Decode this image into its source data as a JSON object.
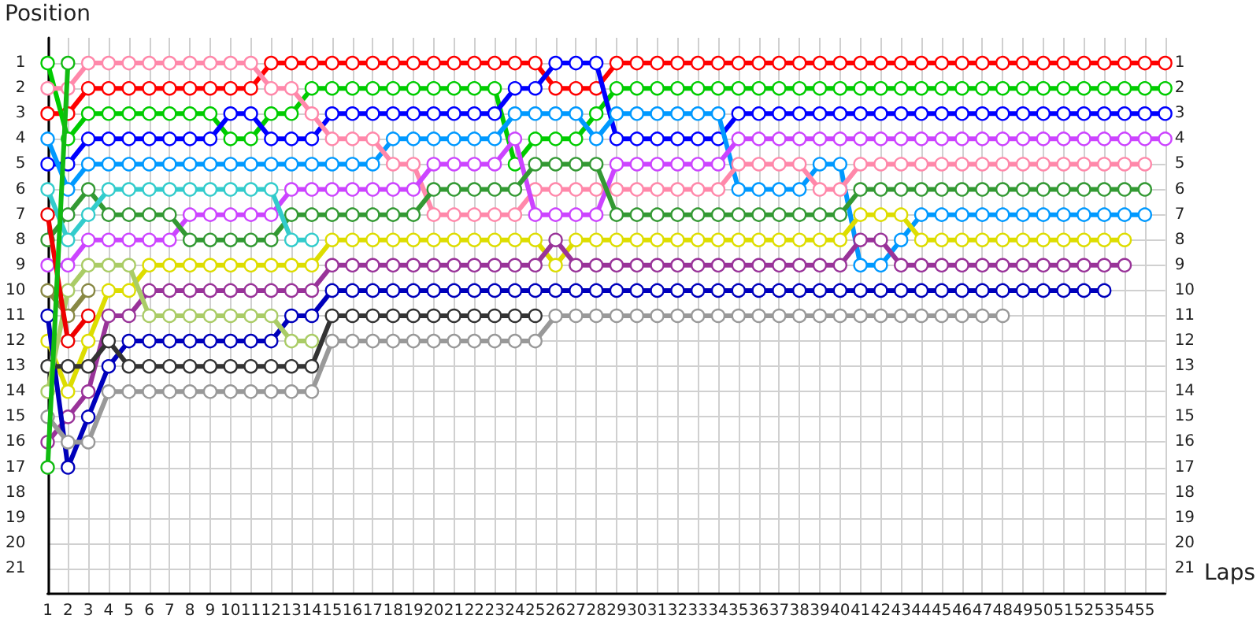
{
  "chart_data": {
    "type": "line",
    "xlabel": "Laps",
    "ylabel": "Position",
    "categories": [
      "1",
      "2",
      "3",
      "4",
      "5",
      "6",
      "7",
      "8",
      "9",
      "10",
      "11",
      "12",
      "13",
      "14",
      "15",
      "16",
      "17",
      "18",
      "19",
      "20",
      "21",
      "22",
      "23",
      "24",
      "25",
      "26",
      "27",
      "28",
      "29",
      "30",
      "31",
      "32",
      "33",
      "34",
      "35",
      "36",
      "37",
      "38",
      "39",
      "40",
      "41",
      "42",
      "43",
      "44",
      "45",
      "46",
      "47",
      "48",
      "49",
      "50",
      "51",
      "52",
      "53",
      "54",
      "55",
      null
    ],
    "ylim": [
      22,
      0
    ],
    "yticks": [
      1,
      2,
      3,
      4,
      5,
      6,
      7,
      8,
      9,
      10,
      11,
      12,
      13,
      14,
      15,
      16,
      17,
      18,
      19,
      20,
      21
    ],
    "y2lim": [
      22,
      0
    ],
    "y2ticks": [
      1,
      2,
      3,
      4,
      5,
      6,
      7,
      8,
      9,
      10,
      11,
      12,
      13,
      14,
      15,
      16,
      17,
      18,
      19,
      20,
      21
    ],
    "grid": true,
    "marker": "circle",
    "line_style": "solid",
    "series": [
      {
        "color": "#ff0000",
        "values": [
          3,
          3,
          2,
          2,
          2,
          2,
          2,
          2,
          2,
          2,
          2,
          1,
          1,
          1,
          1,
          1,
          1,
          1,
          1,
          1,
          1,
          1,
          1,
          1,
          1,
          2,
          2,
          2,
          1,
          1,
          1,
          1,
          1,
          1,
          1,
          1,
          1,
          1,
          1,
          1,
          1,
          1,
          1,
          1,
          1,
          1,
          1,
          1,
          1,
          1,
          1,
          1,
          1,
          1,
          1,
          1
        ]
      },
      {
        "color": "#00cc00",
        "values": [
          1,
          4,
          3,
          3,
          3,
          3,
          3,
          3,
          3,
          4,
          4,
          3,
          3,
          2,
          2,
          2,
          2,
          2,
          2,
          2,
          2,
          2,
          2,
          5,
          4,
          4,
          4,
          3,
          2,
          2,
          2,
          2,
          2,
          2,
          2,
          2,
          2,
          2,
          2,
          2,
          2,
          2,
          2,
          2,
          2,
          2,
          2,
          2,
          2,
          2,
          2,
          2,
          2,
          2,
          2,
          2
        ]
      },
      {
        "color": "#0000ff",
        "values": [
          5,
          5,
          4,
          4,
          4,
          4,
          4,
          4,
          4,
          3,
          3,
          4,
          4,
          4,
          3,
          3,
          3,
          3,
          3,
          3,
          3,
          3,
          3,
          2,
          2,
          1,
          1,
          1,
          4,
          4,
          4,
          4,
          4,
          4,
          3,
          3,
          3,
          3,
          3,
          3,
          3,
          3,
          3,
          3,
          3,
          3,
          3,
          3,
          3,
          3,
          3,
          3,
          3,
          3,
          3,
          3
        ]
      },
      {
        "color": "#0099ff",
        "values": [
          4,
          6,
          5,
          5,
          5,
          5,
          5,
          5,
          5,
          5,
          5,
          5,
          5,
          5,
          5,
          5,
          5,
          4,
          4,
          4,
          4,
          4,
          4,
          3,
          3,
          3,
          3,
          4,
          3,
          3,
          3,
          3,
          3,
          3,
          6,
          6,
          6,
          6,
          5,
          5,
          9,
          9,
          8,
          7,
          7,
          7,
          7,
          7,
          7,
          7,
          7,
          7,
          7,
          7,
          7,
          null
        ]
      },
      {
        "color": "#ff88aa",
        "values": [
          2,
          2,
          1,
          1,
          1,
          1,
          1,
          1,
          1,
          1,
          1,
          2,
          2,
          3,
          4,
          4,
          4,
          5,
          5,
          7,
          7,
          7,
          7,
          7,
          6,
          6,
          6,
          6,
          6,
          6,
          6,
          6,
          6,
          6,
          5,
          5,
          5,
          5,
          6,
          6,
          5,
          5,
          5,
          5,
          5,
          5,
          5,
          5,
          5,
          5,
          5,
          5,
          5,
          5,
          5,
          null
        ]
      },
      {
        "color": "#cc44ff",
        "values": [
          9,
          9,
          8,
          8,
          8,
          8,
          8,
          7,
          7,
          7,
          7,
          7,
          6,
          6,
          6,
          6,
          6,
          6,
          6,
          5,
          5,
          5,
          5,
          4,
          7,
          7,
          7,
          7,
          5,
          5,
          5,
          5,
          5,
          5,
          4,
          4,
          4,
          4,
          4,
          4,
          4,
          4,
          4,
          4,
          4,
          4,
          4,
          4,
          4,
          4,
          4,
          4,
          4,
          4,
          4,
          4
        ]
      },
      {
        "color": "#339933",
        "values": [
          8,
          7,
          6,
          7,
          7,
          7,
          7,
          8,
          8,
          8,
          8,
          8,
          7,
          7,
          7,
          7,
          7,
          7,
          7,
          6,
          6,
          6,
          6,
          6,
          5,
          5,
          5,
          5,
          7,
          7,
          7,
          7,
          7,
          7,
          7,
          7,
          7,
          7,
          7,
          7,
          6,
          6,
          6,
          6,
          6,
          6,
          6,
          6,
          6,
          6,
          6,
          6,
          6,
          6,
          6,
          null
        ]
      },
      {
        "color": "#33cccc",
        "values": [
          6,
          8,
          7,
          6,
          6,
          6,
          6,
          6,
          6,
          6,
          6,
          6,
          8,
          8,
          null,
          null,
          null,
          null,
          null,
          null,
          null,
          null,
          null,
          null,
          null,
          null,
          null,
          null,
          null,
          null,
          null,
          null,
          null,
          null,
          null,
          null,
          null,
          null,
          null,
          null,
          null,
          null,
          null,
          null,
          null,
          null,
          null,
          null,
          null,
          null,
          null,
          null,
          null,
          null,
          null,
          null
        ]
      },
      {
        "color": "#dddd00",
        "values": [
          12,
          14,
          12,
          10,
          10,
          9,
          9,
          9,
          9,
          9,
          9,
          9,
          9,
          9,
          8,
          8,
          8,
          8,
          8,
          8,
          8,
          8,
          8,
          8,
          8,
          9,
          8,
          8,
          8,
          8,
          8,
          8,
          8,
          8,
          8,
          8,
          8,
          8,
          8,
          8,
          7,
          7,
          7,
          8,
          8,
          8,
          8,
          8,
          8,
          8,
          8,
          8,
          8,
          8,
          null,
          null
        ]
      },
      {
        "color": "#993399",
        "values": [
          16,
          15,
          14,
          11,
          11,
          10,
          10,
          10,
          10,
          10,
          10,
          10,
          10,
          10,
          9,
          9,
          9,
          9,
          9,
          9,
          9,
          9,
          9,
          9,
          9,
          8,
          9,
          9,
          9,
          9,
          9,
          9,
          9,
          9,
          9,
          9,
          9,
          9,
          9,
          9,
          8,
          8,
          9,
          9,
          9,
          9,
          9,
          9,
          9,
          9,
          9,
          9,
          9,
          9,
          null,
          null
        ]
      },
      {
        "color": "#0000bb",
        "values": [
          11,
          17,
          15,
          13,
          12,
          12,
          12,
          12,
          12,
          12,
          12,
          12,
          11,
          11,
          10,
          10,
          10,
          10,
          10,
          10,
          10,
          10,
          10,
          10,
          10,
          10,
          10,
          10,
          10,
          10,
          10,
          10,
          10,
          10,
          10,
          10,
          10,
          10,
          10,
          10,
          10,
          10,
          10,
          10,
          10,
          10,
          10,
          10,
          10,
          10,
          10,
          10,
          10,
          null,
          null,
          null
        ]
      },
      {
        "color": "#333333",
        "values": [
          13,
          13,
          13,
          12,
          13,
          13,
          13,
          13,
          13,
          13,
          13,
          13,
          13,
          13,
          11,
          11,
          11,
          11,
          11,
          11,
          11,
          11,
          11,
          11,
          11,
          null,
          null,
          null,
          null,
          null,
          null,
          null,
          null,
          null,
          null,
          null,
          null,
          null,
          null,
          null,
          null,
          null,
          null,
          null,
          null,
          null,
          null,
          null,
          null,
          null,
          null,
          null,
          null,
          null,
          null,
          null
        ]
      },
      {
        "color": "#999999",
        "values": [
          15,
          16,
          16,
          14,
          14,
          14,
          14,
          14,
          14,
          14,
          14,
          14,
          14,
          14,
          12,
          12,
          12,
          12,
          12,
          12,
          12,
          12,
          12,
          12,
          12,
          11,
          11,
          11,
          11,
          11,
          11,
          11,
          11,
          11,
          11,
          11,
          11,
          11,
          11,
          11,
          11,
          11,
          11,
          11,
          11,
          11,
          11,
          11,
          null,
          null,
          null,
          null,
          null,
          null,
          null,
          null
        ]
      },
      {
        "color": "#aacc66",
        "values": [
          14,
          10,
          9,
          9,
          9,
          11,
          11,
          11,
          11,
          11,
          11,
          11,
          12,
          12,
          null,
          null,
          null,
          null,
          null,
          null,
          null,
          null,
          null,
          null,
          null,
          null,
          null,
          null,
          null,
          null,
          null,
          null,
          null,
          null,
          null,
          null,
          null,
          null,
          null,
          null,
          null,
          null,
          null,
          null,
          null,
          null,
          null,
          null,
          null,
          null,
          null,
          null,
          null,
          null,
          null,
          null
        ]
      },
      {
        "color": "#888844",
        "values": [
          10,
          11,
          10,
          null,
          null,
          null,
          null,
          null,
          null,
          null,
          null,
          null,
          null,
          null,
          null,
          null,
          null,
          null,
          null,
          null,
          null,
          null,
          null,
          null,
          null,
          null,
          null,
          null,
          null,
          null,
          null,
          null,
          null,
          null,
          null,
          null,
          null,
          null,
          null,
          null,
          null,
          null,
          null,
          null,
          null,
          null,
          null,
          null,
          null,
          null,
          null,
          null,
          null,
          null,
          null,
          null
        ]
      },
      {
        "color": "#ee0000",
        "values": [
          7,
          12,
          11,
          null,
          null,
          null,
          null,
          null,
          null,
          null,
          null,
          null,
          null,
          null,
          null,
          null,
          null,
          null,
          null,
          null,
          null,
          null,
          null,
          null,
          null,
          null,
          null,
          null,
          null,
          null,
          null,
          null,
          null,
          null,
          null,
          null,
          null,
          null,
          null,
          null,
          null,
          null,
          null,
          null,
          null,
          null,
          null,
          null,
          null,
          null,
          null,
          null,
          null,
          null,
          null,
          null
        ]
      },
      {
        "color": "#11bb11",
        "values": [
          17,
          1,
          null,
          null,
          null,
          null,
          null,
          null,
          null,
          null,
          null,
          null,
          null,
          null,
          null,
          null,
          null,
          null,
          null,
          null,
          null,
          null,
          null,
          null,
          null,
          null,
          null,
          null,
          null,
          null,
          null,
          null,
          null,
          null,
          null,
          null,
          null,
          null,
          null,
          null,
          null,
          null,
          null,
          null,
          null,
          null,
          null,
          null,
          null,
          null,
          null,
          null,
          null,
          null,
          null,
          null
        ]
      }
    ]
  }
}
